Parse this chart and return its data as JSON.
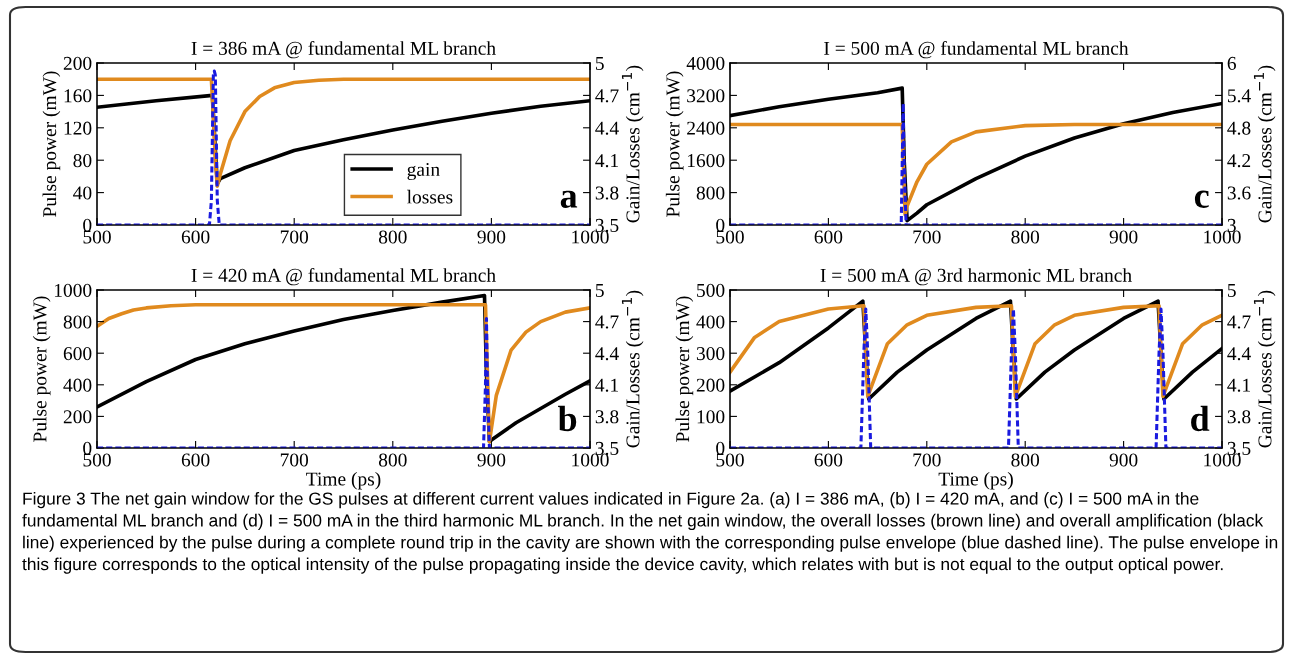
{
  "chart_data": [
    {
      "type": "line",
      "title": "I = 386 mA @ fundamental ML branch",
      "ylabel": "Pulse power (mW)",
      "y2label": "Gain/Losses (cm$^{−1}$)",
      "xlim": [
        500,
        1000
      ],
      "xticks": [
        500,
        600,
        700,
        800,
        900,
        1000
      ],
      "ylim": [
        0,
        200
      ],
      "yticks": [
        0,
        40,
        80,
        120,
        160,
        200
      ],
      "y2lim": [
        3.5,
        5
      ],
      "y2ticks": [
        3.5,
        3.8,
        4.1,
        4.4,
        4.7,
        5
      ],
      "grid": false,
      "legend": "bottom",
      "annotations": [
        "a",
        "Figure 3 The net gain window for the GS pulses at different current values indicated in Figure 2a. (a) I = 386 mA, (b) I = 420 mA, and (c) I = 500 mA in the fundamental ML branch and (d) I = 500 mA in the third harmonic ML branch. In the net gain window, the overall losses (brown line) and overall amplification (black line) experienced by the pulse during a complete round trip in the cavity are shown with the corresponding pulse envelope (blue dashed line). The pulse envelope in this figure corresponds to the optical intensity of the pulse propagating inside the device cavity, which relates with but is not equal to the output optical power."
      ],
      "series": [
        {
          "color": "#1a1adf",
          "line_style": "dashed",
          "x": [
            500,
            614,
            616,
            618,
            619,
            620,
            622,
            624,
            1000
          ],
          "values": [
            0,
            0,
            30,
            185,
            190,
            185,
            30,
            0,
            0
          ]
        },
        {
          "name": "gain",
          "color": "#000000",
          "axis": "y2",
          "x": [
            500,
            560,
            617,
            620,
            622,
            625,
            650,
            700,
            750,
            800,
            850,
            900,
            950,
            1000
          ],
          "values": [
            4.59,
            4.65,
            4.7,
            4.2,
            3.88,
            3.93,
            4.03,
            4.19,
            4.29,
            4.38,
            4.46,
            4.535,
            4.6,
            4.65
          ]
        },
        {
          "name": "losses",
          "color": "#e08a1e",
          "axis": "y2",
          "x": [
            500,
            616,
            618,
            620,
            622,
            625,
            635,
            650,
            665,
            680,
            700,
            725,
            750,
            1000
          ],
          "values": [
            4.85,
            4.85,
            4.5,
            4.1,
            3.86,
            3.97,
            4.28,
            4.55,
            4.69,
            4.77,
            4.82,
            4.84,
            4.85,
            4.85
          ]
        }
      ]
    },
    {
      "type": "line",
      "title": "I = 500 mA @ fundamental ML branch",
      "ylabel": "Pulse power (mW)",
      "y2label": "Gain/Losses (cm$^{−1}$)",
      "xlim": [
        500,
        1000
      ],
      "xticks": [
        500,
        600,
        700,
        800,
        900,
        1000
      ],
      "ylim": [
        0,
        4000
      ],
      "yticks": [
        0,
        800,
        1600,
        2400,
        3200,
        4000
      ],
      "y2lim": [
        3,
        6
      ],
      "y2ticks": [
        3,
        3.6,
        4.2,
        4.8,
        5.4,
        6
      ],
      "grid": false,
      "annotations": [
        "c"
      ],
      "series": [
        {
          "color": "#1a1adf",
          "line_style": "dashed",
          "x": [
            500,
            674,
            675,
            676,
            677,
            679,
            1000
          ],
          "values": [
            0,
            0,
            1500,
            3000,
            1500,
            0,
            0
          ]
        },
        {
          "color": "#000000",
          "axis": "y2",
          "x": [
            500,
            550,
            600,
            650,
            675,
            677,
            680,
            690,
            700,
            750,
            800,
            850,
            900,
            950,
            1000
          ],
          "values": [
            5.025,
            5.19,
            5.33,
            5.45,
            5.535,
            4.2,
            3.08,
            3.22,
            3.375,
            3.86,
            4.275,
            4.61,
            4.875,
            5.085,
            5.25
          ]
        },
        {
          "color": "#e08a1e",
          "axis": "y2",
          "x": [
            500,
            675,
            676,
            678,
            680,
            690,
            700,
            725,
            750,
            800,
            850,
            1000
          ],
          "values": [
            4.86,
            4.86,
            4.2,
            3.19,
            3.35,
            3.8,
            4.125,
            4.54,
            4.725,
            4.84,
            4.86,
            4.86
          ]
        }
      ]
    },
    {
      "type": "line",
      "title": "I = 420 mA @ fundamental ML branch",
      "xlabel": "Time (ps)",
      "ylabel": "Pulse power (mW)",
      "y2label": "Gain/Losses (cm$^{−1}$)",
      "xlim": [
        500,
        1000
      ],
      "xticks": [
        500,
        600,
        700,
        800,
        900,
        1000
      ],
      "ylim": [
        0,
        1000
      ],
      "yticks": [
        0,
        200,
        400,
        600,
        800,
        1000
      ],
      "y2lim": [
        3.5,
        5
      ],
      "y2ticks": [
        3.5,
        3.8,
        4.1,
        4.4,
        4.7,
        5
      ],
      "grid": false,
      "annotations": [
        "b"
      ],
      "series": [
        {
          "color": "#1a1adf",
          "line_style": "dashed",
          "x": [
            500,
            892,
            894,
            895,
            896,
            898,
            1000
          ],
          "values": [
            0,
            0,
            400,
            820,
            400,
            0,
            0
          ]
        },
        {
          "color": "#000000",
          "axis": "y2",
          "x": [
            500,
            550,
            600,
            650,
            700,
            750,
            800,
            850,
            893,
            895,
            898,
            900,
            925,
            950,
            975,
            1000
          ],
          "values": [
            3.89,
            4.13,
            4.34,
            4.49,
            4.61,
            4.72,
            4.805,
            4.885,
            4.948,
            4.2,
            3.56,
            3.575,
            3.74,
            3.875,
            4.01,
            4.1375
          ]
        },
        {
          "color": "#e08a1e",
          "axis": "y2",
          "x": [
            500,
            512,
            525,
            537,
            550,
            575,
            600,
            894,
            896,
            898,
            905,
            920,
            935,
            950,
            975,
            1000
          ],
          "values": [
            4.655,
            4.73,
            4.775,
            4.81,
            4.83,
            4.85,
            4.86,
            4.86,
            4.2,
            3.56,
            4.0,
            4.43,
            4.6,
            4.7,
            4.79,
            4.83
          ]
        }
      ]
    },
    {
      "type": "line",
      "title": "I = 500 mA @ 3rd harmonic ML branch",
      "xlabel": "Time (ps)",
      "ylabel": "Pulse power (mW)",
      "y2label": "Gain/Losses (cm$^{−1}$)",
      "xlim": [
        500,
        1000
      ],
      "xticks": [
        500,
        600,
        700,
        800,
        900,
        1000
      ],
      "ylim": [
        0,
        500
      ],
      "yticks": [
        0,
        100,
        200,
        300,
        400,
        500
      ],
      "y2lim": [
        3.5,
        5
      ],
      "y2ticks": [
        3.5,
        3.8,
        4.1,
        4.4,
        4.7,
        5
      ],
      "grid": false,
      "annotations": [
        "d"
      ],
      "series": [
        {
          "color": "#1a1adf",
          "line_style": "dashed",
          "x": [
            500,
            633,
            636,
            638,
            640,
            643,
            783,
            786,
            788,
            790,
            793,
            933,
            936,
            938,
            940,
            943,
            1000
          ],
          "values": [
            0,
            0,
            300,
            440,
            300,
            0,
            0,
            300,
            440,
            300,
            0,
            0,
            300,
            440,
            300,
            0,
            0
          ]
        },
        {
          "color": "#000000",
          "axis": "y2",
          "x": [
            500,
            550,
            600,
            635,
            638,
            641,
            670,
            700,
            750,
            785,
            788,
            791,
            820,
            850,
            900,
            935,
            938,
            941,
            970,
            1000
          ],
          "values": [
            4.04,
            4.31,
            4.64,
            4.895,
            4.4,
            3.965,
            4.22,
            4.43,
            4.73,
            4.895,
            4.4,
            3.965,
            4.22,
            4.43,
            4.73,
            4.895,
            4.4,
            3.965,
            4.22,
            4.445
          ]
        },
        {
          "color": "#e08a1e",
          "axis": "y2",
          "x": [
            500,
            525,
            550,
            600,
            636,
            638,
            640,
            660,
            680,
            700,
            750,
            786,
            788,
            790,
            810,
            830,
            850,
            900,
            936,
            938,
            940,
            960,
            980,
            1000
          ],
          "values": [
            4.22,
            4.55,
            4.7,
            4.82,
            4.85,
            4.4,
            3.99,
            4.49,
            4.67,
            4.76,
            4.835,
            4.85,
            4.4,
            3.99,
            4.49,
            4.67,
            4.76,
            4.835,
            4.85,
            4.4,
            3.99,
            4.49,
            4.67,
            4.76
          ]
        }
      ]
    }
  ]
}
